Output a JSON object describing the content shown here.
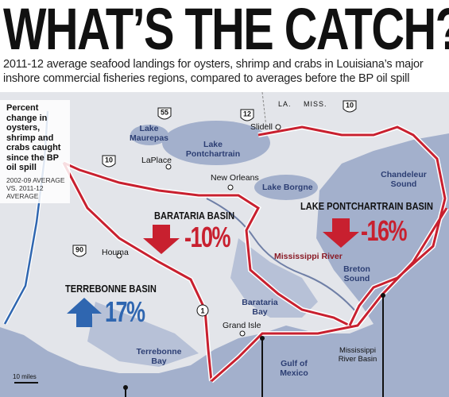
{
  "header": {
    "title": "WHAT’S THE CATCH?",
    "subtitle": "2011-12 average seafood landings for oysters, shrimp and crabs in Louisiana’s major inshore commercial fisheries regions, compared to averages before the BP oil spill"
  },
  "legend": {
    "text": "Percent change in oysters, shrimp and crabs caught since the BP oil spill",
    "note": "2002-09 AVERAGE VS. 2011-12 AVERAGE"
  },
  "basins": [
    {
      "name": "BARATARIA BASIN",
      "change": "-10%"
    },
    {
      "name": "LAKE PONTCHARTRAIN BASIN",
      "change": "-16%"
    },
    {
      "name": "TERREBONNE BASIN",
      "change": "17%"
    }
  ],
  "water_labels": [
    "Lake Maurepas",
    "Lake Pontchartrain",
    "Lake Borgne",
    "Chandeleur Sound",
    "Mississippi River",
    "Breton Sound",
    "Barataria Bay",
    "Terrebonne Bay",
    "Gulf of Mexico"
  ],
  "towns": [
    "LaPlace",
    "New Orleans",
    "Slidell",
    "Houma",
    "Grand Isle",
    "Mississippi River Basin"
  ],
  "states": [
    "LA.",
    "MISS."
  ],
  "highways": [
    "55",
    "12",
    "10",
    "10",
    "90",
    "1"
  ],
  "scale": "10 miles"
}
